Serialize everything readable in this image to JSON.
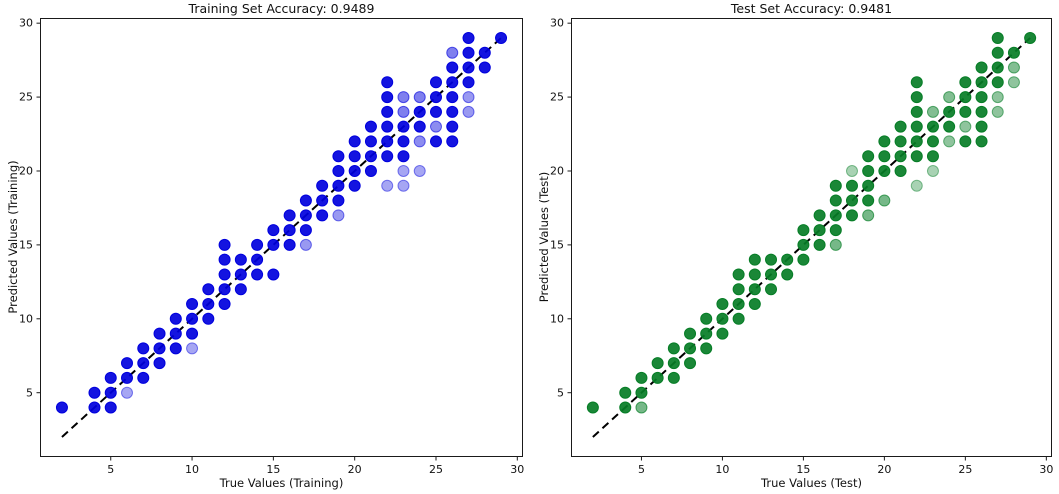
{
  "figure": {
    "background": "#ffffff",
    "text_color": "#111111",
    "spine_color": "#1a1a1a"
  },
  "chart_data": [
    {
      "type": "scatter",
      "title": "Training Set Accuracy: 0.9489",
      "xlabel": "True Values (Training)",
      "ylabel": "Predicted Values (Training)",
      "xlim": [
        0.65,
        30.35
      ],
      "ylim": [
        0.65,
        30.35
      ],
      "xticks": [
        5,
        10,
        15,
        20,
        25,
        30
      ],
      "yticks": [
        5,
        10,
        15,
        20,
        25,
        30
      ],
      "grid": false,
      "legend": "none",
      "dot_color": "#0000dd",
      "identity_line": {
        "from": 2,
        "to": 29,
        "color": "#000000",
        "style": "dashed"
      },
      "points": [
        [
          2,
          4,
          1
        ],
        [
          4,
          4,
          1
        ],
        [
          5,
          4,
          1
        ],
        [
          4,
          5,
          1
        ],
        [
          5,
          5,
          1
        ],
        [
          6,
          5,
          0.35
        ],
        [
          5,
          6,
          1
        ],
        [
          6,
          6,
          1
        ],
        [
          7,
          6,
          1
        ],
        [
          6,
          7,
          1
        ],
        [
          7,
          7,
          1
        ],
        [
          8,
          7,
          1
        ],
        [
          7,
          8,
          1
        ],
        [
          8,
          8,
          1
        ],
        [
          9,
          8,
          1
        ],
        [
          10,
          8,
          0.35
        ],
        [
          8,
          9,
          1
        ],
        [
          9,
          9,
          1
        ],
        [
          10,
          9,
          1
        ],
        [
          9,
          10,
          1
        ],
        [
          10,
          10,
          1
        ],
        [
          11,
          10,
          1
        ],
        [
          10,
          11,
          1
        ],
        [
          11,
          11,
          1
        ],
        [
          12,
          11,
          1
        ],
        [
          11,
          12,
          1
        ],
        [
          12,
          12,
          1
        ],
        [
          13,
          12,
          1
        ],
        [
          12,
          13,
          1
        ],
        [
          13,
          13,
          1
        ],
        [
          14,
          13,
          1
        ],
        [
          15,
          13,
          1
        ],
        [
          12,
          14,
          1
        ],
        [
          13,
          14,
          1
        ],
        [
          14,
          14,
          1
        ],
        [
          12,
          15,
          1
        ],
        [
          14,
          15,
          1
        ],
        [
          15,
          15,
          1
        ],
        [
          16,
          15,
          1
        ],
        [
          17,
          15,
          0.4
        ],
        [
          15,
          16,
          1
        ],
        [
          16,
          16,
          1
        ],
        [
          17,
          16,
          1
        ],
        [
          16,
          17,
          1
        ],
        [
          17,
          17,
          1
        ],
        [
          18,
          17,
          1
        ],
        [
          19,
          17,
          0.4
        ],
        [
          17,
          18,
          1
        ],
        [
          18,
          18,
          1
        ],
        [
          19,
          18,
          1
        ],
        [
          18,
          19,
          1
        ],
        [
          19,
          19,
          1
        ],
        [
          20,
          19,
          1
        ],
        [
          22,
          19,
          0.35
        ],
        [
          23,
          19,
          0.35
        ],
        [
          19,
          20,
          1
        ],
        [
          20,
          20,
          1
        ],
        [
          21,
          20,
          1
        ],
        [
          23,
          20,
          0.35
        ],
        [
          24,
          20,
          0.35
        ],
        [
          19,
          21,
          1
        ],
        [
          20,
          21,
          1
        ],
        [
          21,
          21,
          1
        ],
        [
          22,
          21,
          1
        ],
        [
          23,
          21,
          1
        ],
        [
          20,
          22,
          1
        ],
        [
          21,
          22,
          1
        ],
        [
          22,
          22,
          1
        ],
        [
          23,
          22,
          1
        ],
        [
          24,
          22,
          0.45
        ],
        [
          25,
          22,
          1
        ],
        [
          26,
          22,
          1
        ],
        [
          21,
          23,
          1
        ],
        [
          22,
          23,
          1
        ],
        [
          23,
          23,
          1
        ],
        [
          24,
          23,
          1
        ],
        [
          25,
          23,
          0.45
        ],
        [
          26,
          23,
          1
        ],
        [
          22,
          24,
          1
        ],
        [
          23,
          24,
          0.5
        ],
        [
          24,
          24,
          1
        ],
        [
          25,
          24,
          1
        ],
        [
          26,
          24,
          1
        ],
        [
          27,
          24,
          0.4
        ],
        [
          22,
          25,
          1
        ],
        [
          23,
          25,
          0.5
        ],
        [
          24,
          25,
          0.5
        ],
        [
          25,
          25,
          1
        ],
        [
          26,
          25,
          1
        ],
        [
          27,
          25,
          0.4
        ],
        [
          22,
          26,
          1
        ],
        [
          25,
          26,
          1
        ],
        [
          26,
          26,
          1
        ],
        [
          27,
          26,
          1
        ],
        [
          26,
          27,
          1
        ],
        [
          27,
          27,
          1
        ],
        [
          28,
          27,
          1
        ],
        [
          26,
          28,
          0.5
        ],
        [
          27,
          28,
          1
        ],
        [
          28,
          28,
          1
        ],
        [
          27,
          29,
          1
        ],
        [
          29,
          29,
          1
        ]
      ]
    },
    {
      "type": "scatter",
      "title": "Test Set Accuracy: 0.9481",
      "xlabel": "True Values (Test)",
      "ylabel": "Predicted Values (Test)",
      "xlim": [
        0.65,
        30.35
      ],
      "ylim": [
        0.65,
        30.35
      ],
      "xticks": [
        5,
        10,
        15,
        20,
        25,
        30
      ],
      "yticks": [
        5,
        10,
        15,
        20,
        25,
        30
      ],
      "grid": false,
      "legend": "none",
      "dot_color": "#067d26",
      "identity_line": {
        "from": 2,
        "to": 29,
        "color": "#000000",
        "style": "dashed"
      },
      "points": [
        [
          2,
          4,
          1
        ],
        [
          4,
          4,
          1
        ],
        [
          5,
          4,
          0.55
        ],
        [
          4,
          5,
          1
        ],
        [
          5,
          5,
          1
        ],
        [
          5,
          6,
          1
        ],
        [
          6,
          6,
          1
        ],
        [
          7,
          6,
          1
        ],
        [
          6,
          7,
          1
        ],
        [
          7,
          7,
          1
        ],
        [
          8,
          7,
          1
        ],
        [
          7,
          8,
          1
        ],
        [
          8,
          8,
          1
        ],
        [
          9,
          8,
          1
        ],
        [
          8,
          9,
          1
        ],
        [
          9,
          9,
          1
        ],
        [
          10,
          9,
          1
        ],
        [
          9,
          10,
          1
        ],
        [
          10,
          10,
          1
        ],
        [
          11,
          10,
          1
        ],
        [
          10,
          11,
          1
        ],
        [
          11,
          11,
          1
        ],
        [
          12,
          11,
          1
        ],
        [
          11,
          12,
          1
        ],
        [
          12,
          12,
          1
        ],
        [
          13,
          12,
          1
        ],
        [
          11,
          13,
          1
        ],
        [
          12,
          13,
          1
        ],
        [
          13,
          13,
          1
        ],
        [
          14,
          13,
          1
        ],
        [
          12,
          14,
          1
        ],
        [
          13,
          14,
          1
        ],
        [
          14,
          14,
          1
        ],
        [
          15,
          14,
          1
        ],
        [
          15,
          15,
          1
        ],
        [
          16,
          15,
          1
        ],
        [
          17,
          15,
          0.55
        ],
        [
          15,
          16,
          1
        ],
        [
          16,
          16,
          1
        ],
        [
          17,
          16,
          1
        ],
        [
          16,
          17,
          1
        ],
        [
          17,
          17,
          1
        ],
        [
          18,
          17,
          1
        ],
        [
          19,
          17,
          0.55
        ],
        [
          17,
          18,
          1
        ],
        [
          18,
          18,
          1
        ],
        [
          19,
          18,
          1
        ],
        [
          20,
          18,
          0.55
        ],
        [
          17,
          19,
          1
        ],
        [
          18,
          19,
          1
        ],
        [
          19,
          19,
          1
        ],
        [
          22,
          19,
          0.35
        ],
        [
          18,
          20,
          0.35
        ],
        [
          19,
          20,
          1
        ],
        [
          20,
          20,
          1
        ],
        [
          21,
          20,
          1
        ],
        [
          23,
          20,
          0.35
        ],
        [
          19,
          21,
          1
        ],
        [
          20,
          21,
          1
        ],
        [
          21,
          21,
          1
        ],
        [
          22,
          21,
          1
        ],
        [
          23,
          21,
          1
        ],
        [
          20,
          22,
          1
        ],
        [
          21,
          22,
          1
        ],
        [
          22,
          22,
          1
        ],
        [
          23,
          22,
          1
        ],
        [
          24,
          22,
          0.45
        ],
        [
          25,
          22,
          1
        ],
        [
          26,
          22,
          1
        ],
        [
          21,
          23,
          1
        ],
        [
          22,
          23,
          1
        ],
        [
          23,
          23,
          1
        ],
        [
          24,
          23,
          1
        ],
        [
          25,
          23,
          0.45
        ],
        [
          26,
          23,
          1
        ],
        [
          22,
          24,
          1
        ],
        [
          23,
          24,
          0.5
        ],
        [
          24,
          24,
          1
        ],
        [
          25,
          24,
          1
        ],
        [
          26,
          24,
          1
        ],
        [
          27,
          24,
          0.45
        ],
        [
          22,
          25,
          1
        ],
        [
          24,
          25,
          0.5
        ],
        [
          25,
          25,
          1
        ],
        [
          26,
          25,
          1
        ],
        [
          27,
          25,
          0.45
        ],
        [
          22,
          26,
          1
        ],
        [
          25,
          26,
          1
        ],
        [
          26,
          26,
          1
        ],
        [
          27,
          26,
          1
        ],
        [
          28,
          26,
          0.45
        ],
        [
          26,
          27,
          1
        ],
        [
          27,
          27,
          1
        ],
        [
          28,
          27,
          0.5
        ],
        [
          27,
          28,
          1
        ],
        [
          28,
          28,
          1
        ],
        [
          27,
          29,
          1
        ],
        [
          29,
          29,
          1
        ]
      ]
    }
  ]
}
